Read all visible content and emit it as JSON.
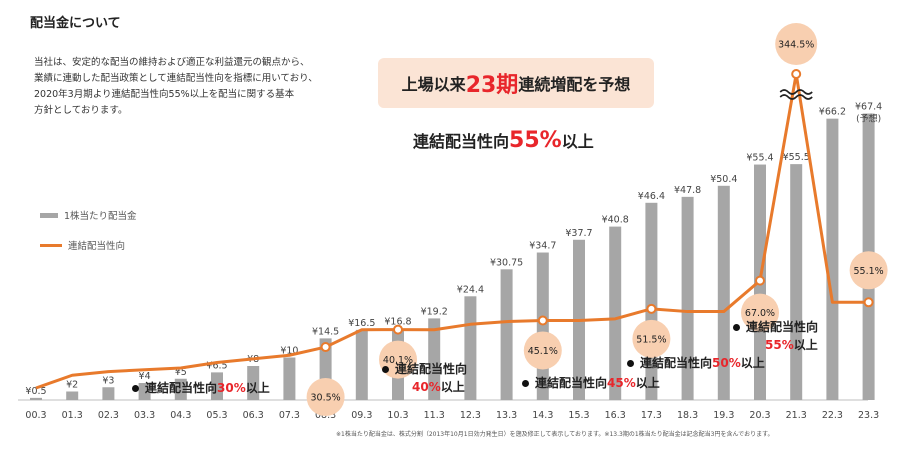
{
  "title": "配当金について",
  "intro_lines": [
    "当社は、安定的な配当の維持および適正な利益還元の観点から、",
    "業績に連動した配当政策として連結配当性向を指標に用いており、",
    "2020年3月期より連結配当性向55%以上を配当に関する基本",
    "方針としております。"
  ],
  "highlight": {
    "pre": "上場以来",
    "num": "23期",
    "post": "連続増配を予想"
  },
  "policy": {
    "pre": "連結配当性向",
    "num": "55%",
    "post": "以上"
  },
  "legend": {
    "bar": "1株当たり配当金",
    "line": "連結配当性向"
  },
  "footnote": "※1株当たり配当金は、株式分割（2013年10月1日効力発生日）を遡及修正して表示しております。※13.3期の1株当たり配当金は記念配当3円を含んでおります。",
  "callouts": [
    {
      "pre": "連結配当性向",
      "pct": "30%",
      "post": "以上",
      "line2_pct": "",
      "line2_post": ""
    },
    {
      "pre": "連結配当性向",
      "pct": "",
      "post": "",
      "line2_pct": "40%",
      "line2_post": "以上"
    },
    {
      "pre": "連結配当性向",
      "pct": "45%",
      "post": "以上",
      "line2_pct": "",
      "line2_post": ""
    },
    {
      "pre": "連結配当性向",
      "pct": "50%",
      "post": "以上",
      "line2_pct": "",
      "line2_post": ""
    },
    {
      "pre": "連結配当性向",
      "pct": "",
      "post": "",
      "line2_pct": "55%",
      "line2_post": "以上"
    }
  ],
  "chart_data": {
    "type": "bar",
    "categories": [
      "00.3",
      "01.3",
      "02.3",
      "03.3",
      "04.3",
      "05.3",
      "06.3",
      "07.3",
      "08.3",
      "09.3",
      "10.3",
      "11.3",
      "12.3",
      "13.3",
      "14.3",
      "15.3",
      "16.3",
      "17.3",
      "18.3",
      "19.3",
      "20.3",
      "21.3",
      "22.3",
      "23.3"
    ],
    "series": [
      {
        "name": "1株当たり配当金",
        "type": "bar",
        "values": [
          0.5,
          2,
          3,
          4,
          5,
          6.5,
          8,
          10,
          14.5,
          16.5,
          16.8,
          19.2,
          24.4,
          30.75,
          34.7,
          37.7,
          40.8,
          46.4,
          47.8,
          50.4,
          55.4,
          55.5,
          66.2,
          67.4
        ],
        "labels": [
          "¥0.5",
          "¥2",
          "¥3",
          "¥4",
          "¥5",
          "¥6.5",
          "¥8",
          "¥10",
          "¥14.5",
          "¥16.5",
          "¥16.8",
          "¥19.2",
          "¥24.4",
          "¥30.75",
          "¥34.7",
          "¥37.7",
          "¥40.8",
          "¥46.4",
          "¥47.8",
          "¥50.4",
          "¥55.4",
          "¥55.5",
          "¥66.2",
          "¥67.4"
        ],
        "color": "#a6a6a6"
      },
      {
        "name": "連結配当性向",
        "type": "line",
        "values": [
          8,
          15,
          17,
          18,
          19,
          22,
          24,
          26,
          30.5,
          40,
          40.1,
          40,
          43,
          44.5,
          45.1,
          45.1,
          46,
          51.5,
          50,
          50,
          67.0,
          344.5,
          55.1,
          55.1
        ],
        "color": "#e87a2c",
        "labeled_points": [
          {
            "index": 8,
            "label": "30.5%"
          },
          {
            "index": 10,
            "label": "40.1%"
          },
          {
            "index": 14,
            "label": "45.1%"
          },
          {
            "index": 17,
            "label": "51.5%"
          },
          {
            "index": 20,
            "label": "67.0%"
          },
          {
            "index": 21,
            "label": "344.5%"
          },
          {
            "index": 23,
            "label": "55.1%"
          }
        ]
      }
    ],
    "forecast_note": "(予想)",
    "axis_break": true,
    "colors": {
      "bar": "#a6a6a6",
      "line": "#e87a2c",
      "bubble": "#f8cfb0",
      "accent": "#e8262b"
    }
  }
}
